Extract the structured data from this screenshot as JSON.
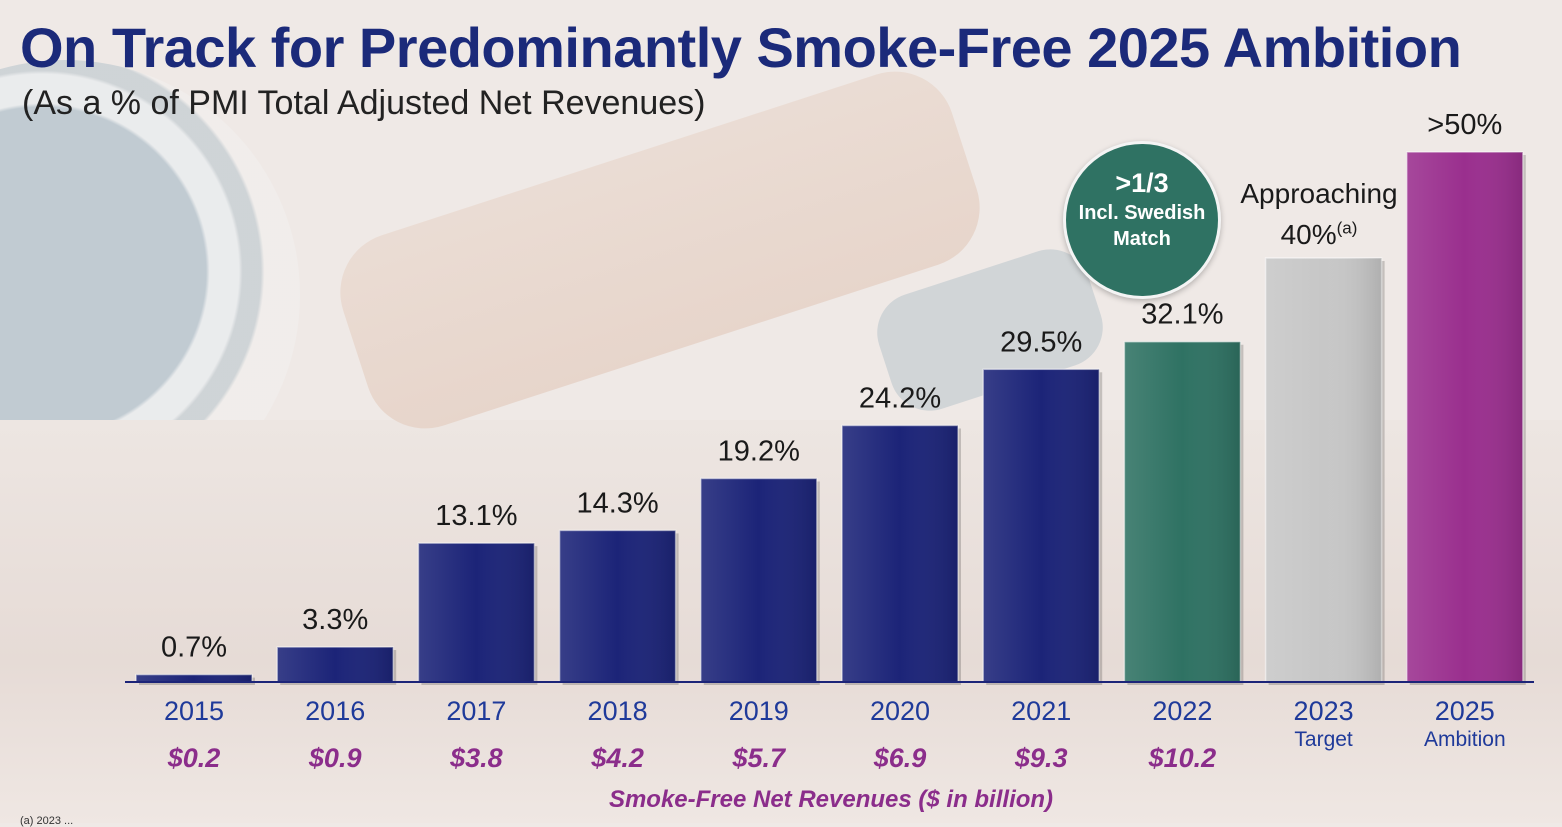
{
  "header": {
    "title": "On Track for Predominantly Smoke-Free 2025 Ambition",
    "subtitle": "(As a % of PMI Total Adjusted Net Revenues)"
  },
  "badge": {
    "line1": ">1/3",
    "line2": "Incl. Swedish",
    "line3": "Match"
  },
  "target_note": {
    "line1": "Approaching",
    "value": "40%",
    "footnote_mark": "(a)"
  },
  "caption": "Smoke-Free Net Revenues ($ in billion)",
  "footnote": "(a) 2023 ...",
  "colors": {
    "title": "#1b2a7a",
    "navy_bar": "#1c2478",
    "green_bar": "#2f7263",
    "gray_bar": "#c7c7c7",
    "purple_bar": "#9a2f8e",
    "revenue_text": "#8b2d8b",
    "year_text": "#1f3a9a"
  },
  "chart_data": {
    "type": "bar",
    "categories": [
      "2015",
      "2016",
      "2017",
      "2018",
      "2019",
      "2020",
      "2021",
      "2022",
      "2023",
      "2025"
    ],
    "sublabels": [
      "",
      "",
      "",
      "",
      "",
      "",
      "",
      "",
      "Target",
      "Ambition"
    ],
    "values": [
      0.7,
      3.3,
      13.1,
      14.3,
      19.2,
      24.2,
      29.5,
      32.1,
      40,
      50
    ],
    "value_labels": [
      "0.7%",
      "3.3%",
      "13.1%",
      "14.3%",
      "19.2%",
      "24.2%",
      "29.5%",
      "32.1%",
      "",
      ">50%"
    ],
    "revenues": [
      "$0.2",
      "$0.9",
      "$3.8",
      "$4.2",
      "$5.7",
      "$6.9",
      "$9.3",
      "$10.2",
      "",
      ""
    ],
    "bar_colors": [
      "navy_bar",
      "navy_bar",
      "navy_bar",
      "navy_bar",
      "navy_bar",
      "navy_bar",
      "navy_bar",
      "green_bar",
      "gray_bar",
      "purple_bar"
    ],
    "ylim": [
      0,
      50
    ],
    "grid": false,
    "legend": "none"
  }
}
